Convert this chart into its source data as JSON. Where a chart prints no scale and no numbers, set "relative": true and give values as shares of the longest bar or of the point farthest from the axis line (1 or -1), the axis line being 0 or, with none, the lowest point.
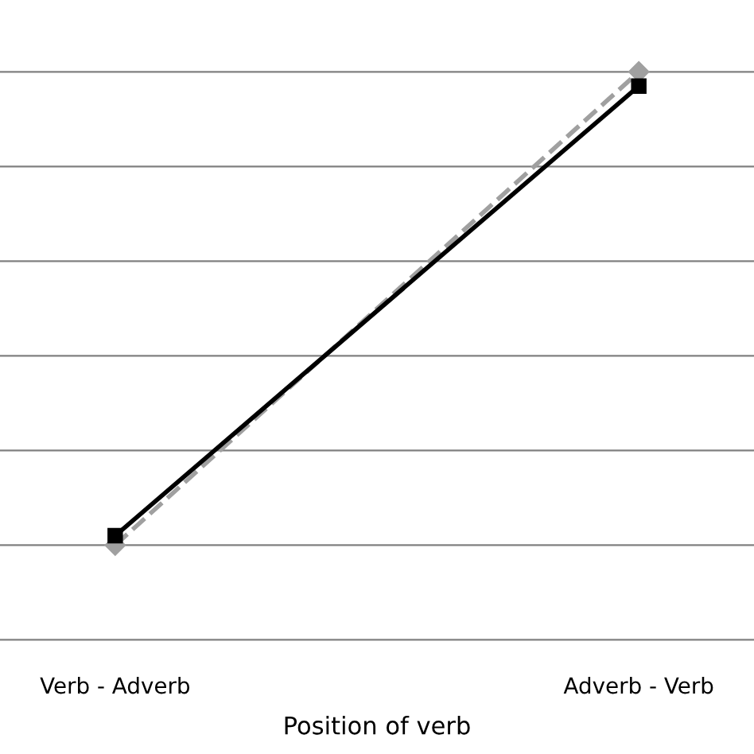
{
  "chart_data": {
    "type": "line",
    "relative": true,
    "xlabel": "Position of verb",
    "categories": [
      "Verb - Adverb",
      "Adverb - Verb"
    ],
    "series": [
      {
        "color": "#000000",
        "values": [
          0.02,
          0.97
        ],
        "marker": "square",
        "line_style": "solid"
      },
      {
        "color": "#a0a0a0",
        "values": [
          0,
          1
        ],
        "marker": "diamond",
        "line_style": "dashed"
      }
    ],
    "grid": "y",
    "legend": false
  }
}
